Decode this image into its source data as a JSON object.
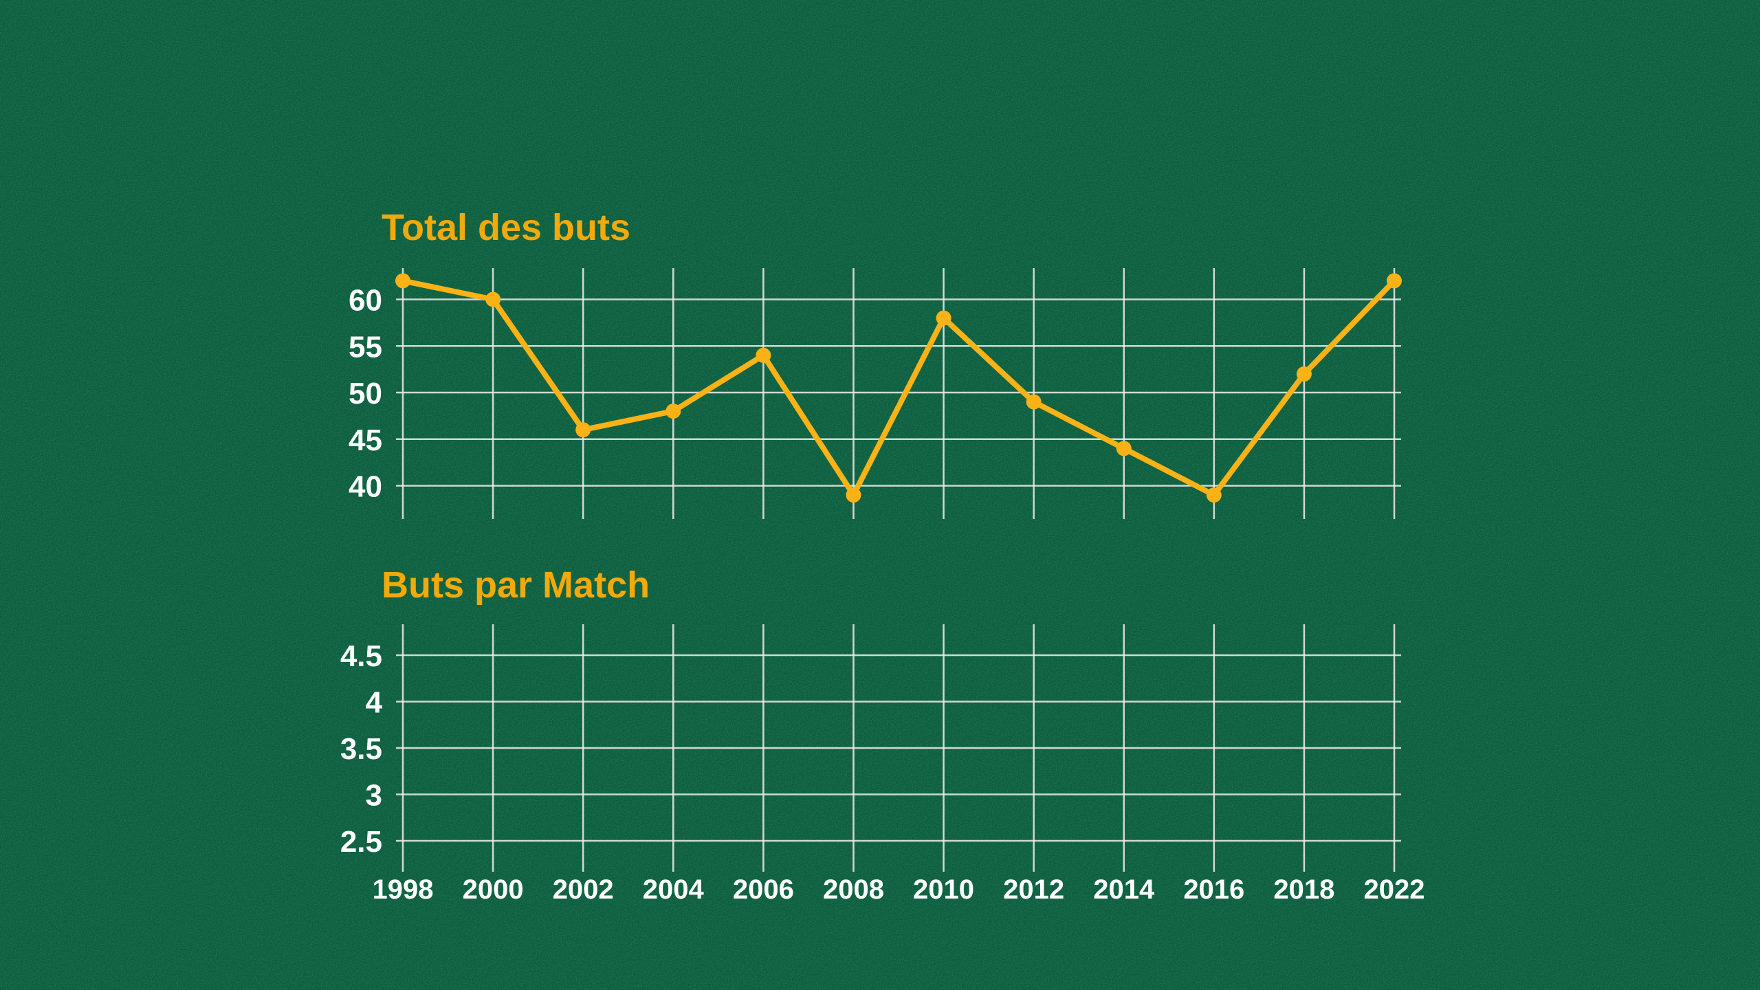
{
  "page": {
    "background_color": "#0E5D3D",
    "texture": "grainy chalkboard-style green noise",
    "accent_gold": "#F2A90C",
    "grid_color": "#E9E9E6",
    "label_color": "#FFFFFF"
  },
  "chart_data": [
    {
      "type": "line",
      "title": "Total des buts",
      "categories": [
        "1998",
        "2000",
        "2002",
        "2004",
        "2006",
        "2008",
        "2010",
        "2012",
        "2014",
        "2016",
        "2018",
        "2022"
      ],
      "values": [
        62,
        60,
        46,
        48,
        54,
        39,
        58,
        49,
        44,
        39,
        52,
        62
      ],
      "xlabel": "",
      "ylabel": "",
      "yticks": [
        "60",
        "55",
        "50",
        "45",
        "40"
      ],
      "ytick_values": [
        60,
        55,
        50,
        45,
        40
      ],
      "ylim": [
        36.6,
        63.4
      ],
      "grid": true,
      "legend": "none",
      "line_color": "#FBB216",
      "marker": "circle",
      "x_axis_labels_shown": false
    },
    {
      "type": "line",
      "title": "Buts par Match",
      "categories": [
        "1998",
        "2000",
        "2002",
        "2004",
        "2006",
        "2008",
        "2010",
        "2012",
        "2014",
        "2016",
        "2018",
        "2022"
      ],
      "values": [],
      "xlabel": "",
      "ylabel": "",
      "yticks": [
        "4.5",
        "4",
        "3.5",
        "3",
        "2.5"
      ],
      "ytick_values": [
        4.5,
        4,
        3.5,
        3,
        2.5
      ],
      "ylim": [
        2.17,
        4.83
      ],
      "grid": true,
      "legend": "none",
      "line_color": "#FBB216",
      "note": "grid shown empty - no series plotted yet",
      "x_axis_labels_shown": true
    }
  ]
}
